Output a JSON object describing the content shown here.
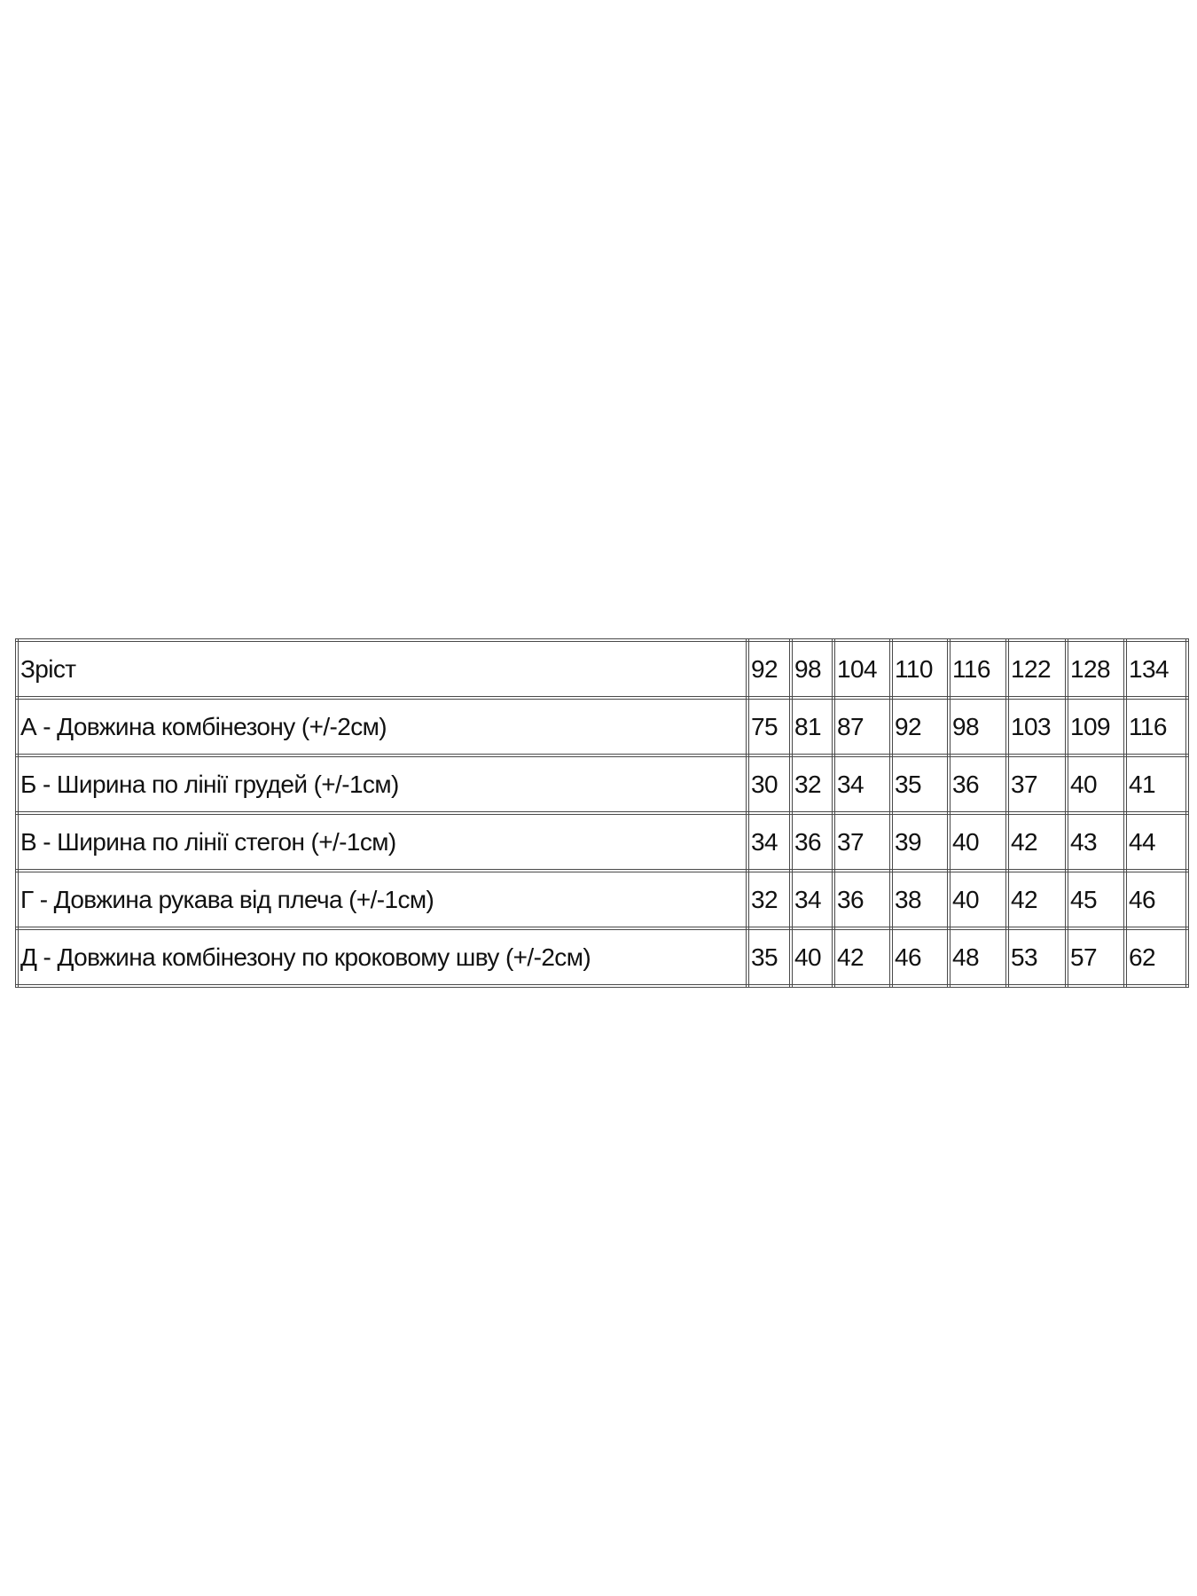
{
  "size_table": {
    "header": {
      "label": "Зріст",
      "sizes": [
        "92",
        "98",
        "104",
        "110",
        "116",
        "122",
        "128",
        "134"
      ]
    },
    "rows": [
      {
        "label": "А - Довжина комбінезону (+/-2см)",
        "values": [
          "75",
          "81",
          "87",
          "92",
          "98",
          "103",
          "109",
          "116"
        ]
      },
      {
        "label": "Б - Ширина по лінії грудей (+/-1см)",
        "values": [
          "30",
          "32",
          "34",
          "35",
          "36",
          "37",
          "40",
          "41"
        ]
      },
      {
        "label": "В - Ширина по лінії стегон (+/-1см)",
        "values": [
          "34",
          "36",
          "37",
          "39",
          "40",
          "42",
          "43",
          "44"
        ]
      },
      {
        "label": "Г - Довжина рукава від плеча (+/-1см)",
        "values": [
          "32",
          "34",
          "36",
          "38",
          "40",
          "42",
          "45",
          "46"
        ]
      },
      {
        "label": "Д - Довжина комбінезону по кроковому шву (+/-2см)",
        "values": [
          "35",
          "40",
          "42",
          "46",
          "48",
          "53",
          "57",
          "62"
        ]
      }
    ]
  }
}
